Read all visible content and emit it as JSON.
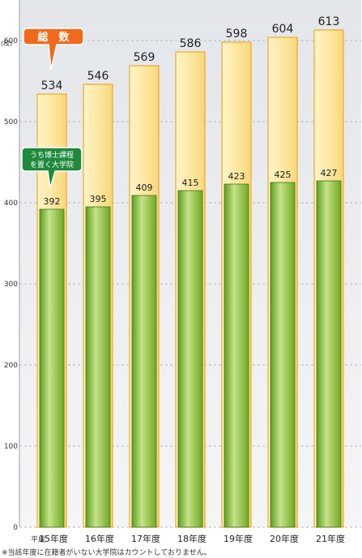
{
  "chart_data": {
    "type": "bar",
    "categories": [
      "平成15年度",
      "16年度",
      "17年度",
      "18年度",
      "19年度",
      "20年度",
      "21年度"
    ],
    "category_prefix": "平成",
    "category_labels": [
      "15年度",
      "16年度",
      "17年度",
      "18年度",
      "19年度",
      "20年度",
      "21年度"
    ],
    "series": [
      {
        "name": "総　数",
        "values": [
          534,
          546,
          569,
          586,
          598,
          604,
          613
        ],
        "color": "#fbe6a0",
        "edge": "#f5a623"
      },
      {
        "name": "うち博士課程を置く大学院",
        "values": [
          392,
          395,
          409,
          415,
          423,
          425,
          427
        ],
        "color": "#8dc63f",
        "edge": "#3e7a13"
      }
    ],
    "overlap": true,
    "ylabel": "(校)",
    "ylim": [
      0,
      650
    ],
    "yticks": [
      0,
      100,
      200,
      300,
      400,
      500,
      600
    ],
    "grid": true,
    "legend_callouts": {
      "total_label": "総　数",
      "doctoral_label_line1": "うち博士課程",
      "doctoral_label_line2": "を置く大学院",
      "total_color": "#f06a1d",
      "doctoral_color": "#1e8a3c"
    },
    "background": "#eef0f3",
    "footnote": "※当該年度に在籍者がいない大学院はカウントしておりません。"
  }
}
